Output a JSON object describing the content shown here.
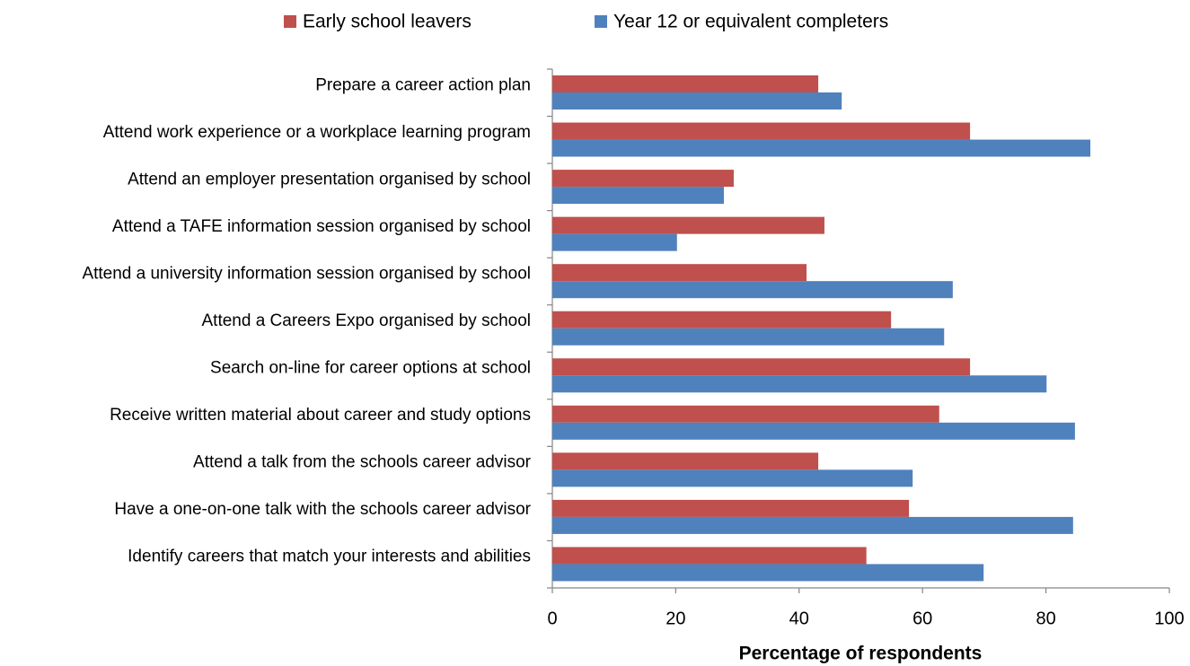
{
  "chart_data": {
    "type": "hbar",
    "xlabel": "Percentage of respondents",
    "categories": [
      "Prepare a career action plan",
      "Attend work experience or a workplace learning program",
      "Attend an employer presentation organised by school",
      "Attend a TAFE information session organised by school",
      "Attend a university information session organised by school",
      "Attend a Careers Expo organised by school",
      "Search on-line for career options at school",
      "Receive written material about career and study options",
      "Attend a talk from the schools career advisor",
      "Have a one-on-one talk with the schools career advisor",
      "Identify careers that match your interests and abilities"
    ],
    "series": [
      {
        "name": "Early school leavers",
        "color": "#c0504d",
        "values": [
          43.1,
          67.7,
          29.4,
          44.1,
          41.2,
          54.9,
          67.7,
          62.7,
          43.1,
          57.8,
          50.9
        ]
      },
      {
        "name": "Year 12 or equivalent completers",
        "color": "#4f81bd",
        "values": [
          46.9,
          87.2,
          27.8,
          20.2,
          64.9,
          63.5,
          80.1,
          84.7,
          58.4,
          84.4,
          69.9
        ]
      }
    ],
    "xlim": [
      0,
      100
    ],
    "xticks": [
      0,
      20,
      40,
      60,
      80,
      100
    ],
    "legend": "top"
  }
}
